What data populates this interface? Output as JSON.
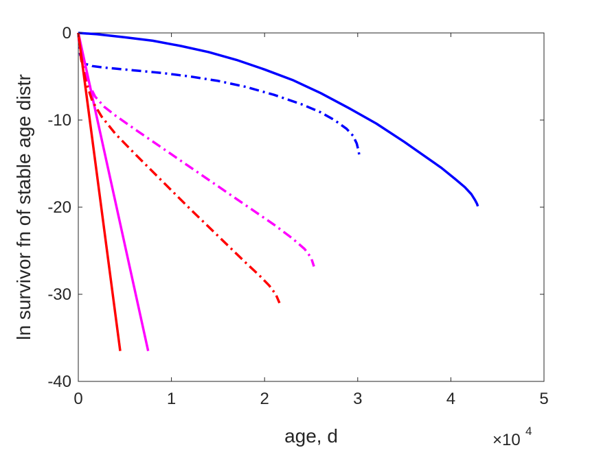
{
  "chart_data": {
    "type": "line",
    "title": "",
    "xlabel": "age, d",
    "ylabel": "ln survivor fn of stable age distr",
    "xlim": [
      0,
      50000
    ],
    "ylim": [
      -40,
      0
    ],
    "x_ticks": [
      0,
      10000,
      20000,
      30000,
      40000,
      50000
    ],
    "x_tick_labels": [
      "0",
      "1",
      "2",
      "3",
      "4",
      "5"
    ],
    "x_exponent_label": {
      "base": "×10",
      "power": "4"
    },
    "y_ticks": [
      0,
      -10,
      -20,
      -30,
      -40
    ],
    "y_tick_labels": [
      "0",
      "-10",
      "-20",
      "-30",
      "-40"
    ],
    "grid": false,
    "legend": "none",
    "series": [
      {
        "color": "#0000ff",
        "style": "solid",
        "x": [
          0,
          2000,
          5000,
          8000,
          11000,
          14000,
          17000,
          20000,
          23000,
          26000,
          29000,
          32000,
          35000,
          37000,
          39000,
          40500,
          41500,
          42200,
          42600,
          42800,
          42900
        ],
        "y": [
          0,
          -0.15,
          -0.5,
          -0.9,
          -1.5,
          -2.2,
          -3.1,
          -4.2,
          -5.4,
          -6.9,
          -8.6,
          -10.4,
          -12.5,
          -14.0,
          -15.5,
          -16.8,
          -17.7,
          -18.5,
          -19.2,
          -19.6,
          -19.9
        ]
      },
      {
        "color": "#0000ff",
        "style": "dashdot",
        "x": [
          0,
          200,
          600,
          1500,
          3000,
          6000,
          9000,
          12000,
          15000,
          18000,
          21000,
          24000,
          26000,
          27500,
          28800,
          29500,
          29900,
          30100,
          30200
        ],
        "y": [
          0,
          -2.5,
          -3.5,
          -3.8,
          -4.0,
          -4.3,
          -4.6,
          -5.0,
          -5.5,
          -6.2,
          -7.1,
          -8.2,
          -9.1,
          -10.0,
          -11.0,
          -11.8,
          -12.7,
          -13.6,
          -14.3
        ]
      },
      {
        "color": "#ff00ff",
        "style": "solid",
        "x": [
          0,
          7500
        ],
        "y": [
          0,
          -36.5
        ]
      },
      {
        "color": "#ff00ff",
        "style": "dashdot",
        "x": [
          0,
          300,
          700,
          1200,
          1800,
          2800,
          4000,
          6000,
          9000,
          12000,
          15000,
          18000,
          21000,
          23000,
          24300,
          25000,
          25300
        ],
        "y": [
          0,
          -2.5,
          -4.5,
          -6.0,
          -7.3,
          -8.5,
          -9.5,
          -11.0,
          -13.2,
          -15.4,
          -17.6,
          -19.8,
          -22.0,
          -23.6,
          -24.8,
          -25.8,
          -26.8
        ]
      },
      {
        "color": "#ff0000",
        "style": "solid",
        "x": [
          0,
          4500
        ],
        "y": [
          0,
          -36.5
        ]
      },
      {
        "color": "#ff0000",
        "style": "dashdot",
        "x": [
          0,
          300,
          800,
          1500,
          2500,
          4000,
          6000,
          9000,
          12000,
          15000,
          18000,
          19500,
          20500,
          21200,
          21600
        ],
        "y": [
          0,
          -3.0,
          -5.5,
          -7.8,
          -9.6,
          -11.6,
          -13.8,
          -17.0,
          -20.2,
          -23.3,
          -26.4,
          -27.9,
          -29.0,
          -30.0,
          -31.0
        ]
      }
    ]
  }
}
